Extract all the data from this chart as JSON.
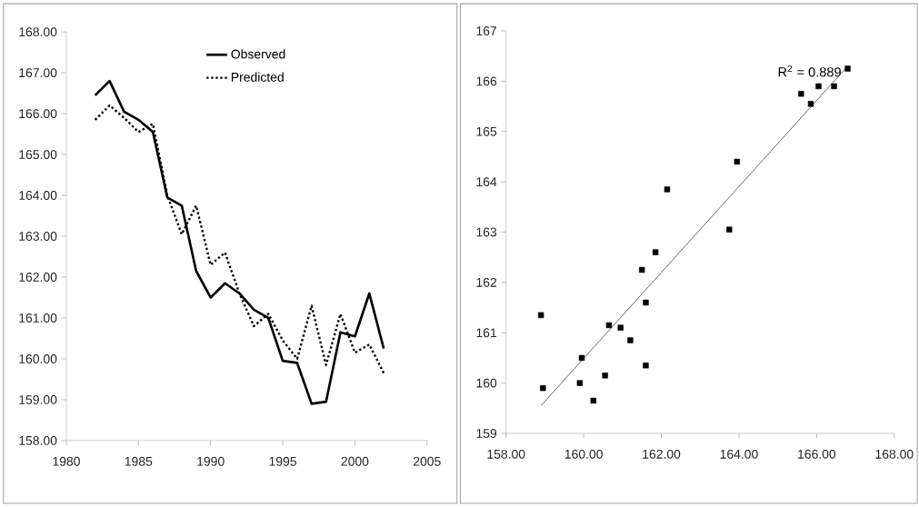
{
  "chart_data": [
    {
      "type": "line",
      "x": [
        1982,
        1983,
        1984,
        1985,
        1986,
        1987,
        1988,
        1989,
        1990,
        1991,
        1992,
        1993,
        1994,
        1995,
        1996,
        1997,
        1998,
        1999,
        2000,
        2001,
        2002
      ],
      "series": [
        {
          "name": "Observed",
          "color": "#000000",
          "line_style": "solid",
          "values": [
            166.45,
            166.8,
            166.05,
            165.85,
            165.55,
            163.95,
            163.75,
            162.15,
            161.5,
            161.85,
            161.6,
            161.2,
            161.0,
            159.95,
            159.9,
            158.9,
            158.95,
            160.65,
            160.55,
            161.6,
            160.25
          ]
        },
        {
          "name": "Predicted",
          "color": "#000000",
          "line_style": "dotted",
          "values": [
            165.85,
            166.2,
            165.9,
            165.55,
            165.75,
            164.0,
            163.05,
            163.75,
            162.3,
            162.6,
            161.6,
            160.8,
            161.1,
            160.45,
            160.0,
            161.3,
            159.85,
            161.1,
            160.15,
            160.35,
            159.65
          ]
        }
      ],
      "xlim": [
        1980,
        2005
      ],
      "xticks": [
        1980,
        1985,
        1990,
        1995,
        2000,
        2005
      ],
      "ylim": [
        158,
        168
      ],
      "yticks": [
        {
          "value": 158,
          "label": "158.00"
        },
        {
          "value": 159,
          "label": "159.00"
        },
        {
          "value": 160,
          "label": "160.00"
        },
        {
          "value": 161,
          "label": "161.00"
        },
        {
          "value": 162,
          "label": "162.00"
        },
        {
          "value": 163,
          "label": "163.00"
        },
        {
          "value": 164,
          "label": "164.00"
        },
        {
          "value": 165,
          "label": "165.00"
        },
        {
          "value": 166,
          "label": "166.00"
        },
        {
          "value": 167,
          "label": "167.00"
        },
        {
          "value": 168,
          "label": "168.00"
        }
      ],
      "legend": "top",
      "grid": false,
      "marker": "none"
    },
    {
      "type": "scatter",
      "marker": "square",
      "series": [
        {
          "color": "#000000",
          "x": [
            158.9,
            158.95,
            159.9,
            159.95,
            160.25,
            160.55,
            160.65,
            160.95,
            161.2,
            161.5,
            161.6,
            161.6,
            161.85,
            162.15,
            163.75,
            163.95,
            165.6,
            165.85,
            166.05,
            166.45,
            166.8
          ],
          "values": [
            161.35,
            159.9,
            160.0,
            160.5,
            159.65,
            160.15,
            161.15,
            161.1,
            160.85,
            162.25,
            161.6,
            160.35,
            162.6,
            163.85,
            163.05,
            164.4,
            165.75,
            165.55,
            165.9,
            165.9,
            166.25
          ]
        },
        {
          "type": "line",
          "marker": "none",
          "color": "#606060",
          "x": [
            158.9,
            166.8
          ],
          "values": [
            159.55,
            166.3
          ]
        }
      ],
      "annotations": [
        {
          "text": "R$^{2}$ = 0.889",
          "x": 166.8,
          "y": 166.3
        }
      ],
      "xlim": [
        158,
        168
      ],
      "xticks": [
        {
          "value": 158,
          "label": "158.00"
        },
        {
          "value": 160,
          "label": "160.00"
        },
        {
          "value": 162,
          "label": "162.00"
        },
        {
          "value": 164,
          "label": "164.00"
        },
        {
          "value": 166,
          "label": "166.00"
        },
        {
          "value": 168,
          "label": "168.00"
        }
      ],
      "ylim": [
        159,
        167
      ],
      "yticks": [
        159,
        160,
        161,
        162,
        163,
        164,
        165,
        166,
        167
      ],
      "grid": false,
      "legend": false
    }
  ]
}
